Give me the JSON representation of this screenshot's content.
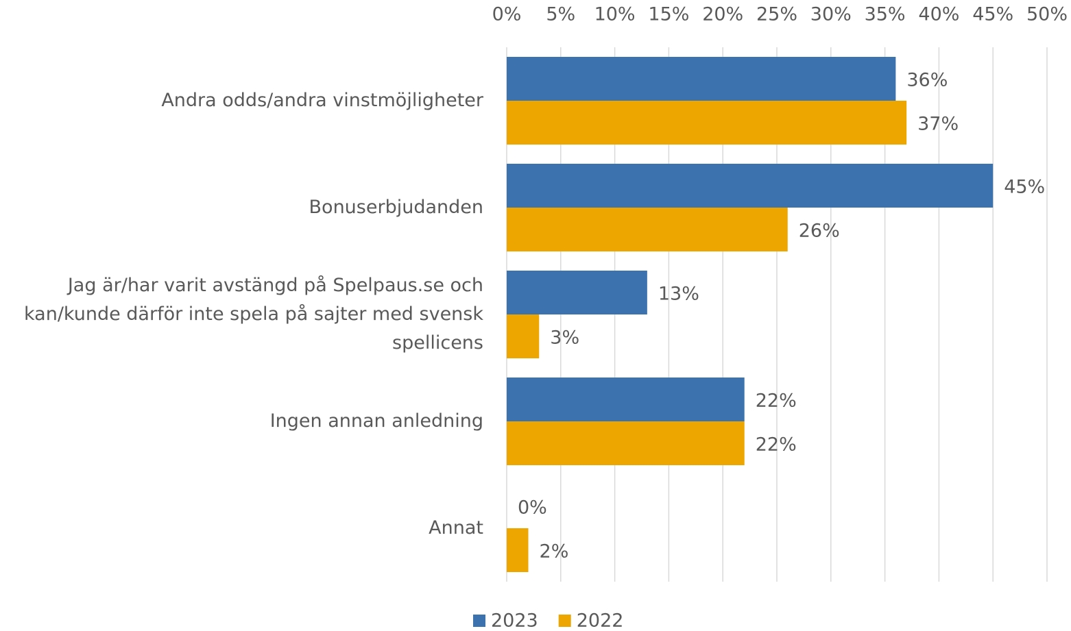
{
  "chart_data": {
    "type": "bar",
    "orientation": "horizontal",
    "categories": [
      "Andra odds/andra vinstmöjligheter",
      "Bonuserbjudanden",
      "Jag är/har varit avstängd på Spelpaus.se och kan/kunde därför inte spela på sajter med svensk spellicens",
      "Ingen annan anledning",
      "Annat"
    ],
    "series": [
      {
        "name": "2023",
        "color": "#3c73ae",
        "values": [
          36,
          45,
          13,
          22,
          0
        ],
        "value_labels": [
          "36%",
          "45%",
          "13%",
          "22%",
          "0%"
        ]
      },
      {
        "name": "2022",
        "color": "#eda600",
        "values": [
          37,
          26,
          3,
          22,
          2
        ],
        "value_labels": [
          "37%",
          "26%",
          "3%",
          "22%",
          "2%"
        ]
      }
    ],
    "xlim": [
      0,
      50
    ],
    "xticks": [
      {
        "value": 0,
        "label": "0%"
      },
      {
        "value": 5,
        "label": "5%"
      },
      {
        "value": 10,
        "label": "10%"
      },
      {
        "value": 15,
        "label": "15%"
      },
      {
        "value": 20,
        "label": "20%"
      },
      {
        "value": 25,
        "label": "25%"
      },
      {
        "value": 30,
        "label": "30%"
      },
      {
        "value": 35,
        "label": "35%"
      },
      {
        "value": 40,
        "label": "40%"
      },
      {
        "value": 45,
        "label": "45%"
      },
      {
        "value": 50,
        "label": "50%"
      }
    ],
    "grid": true,
    "legend": "bottom"
  }
}
